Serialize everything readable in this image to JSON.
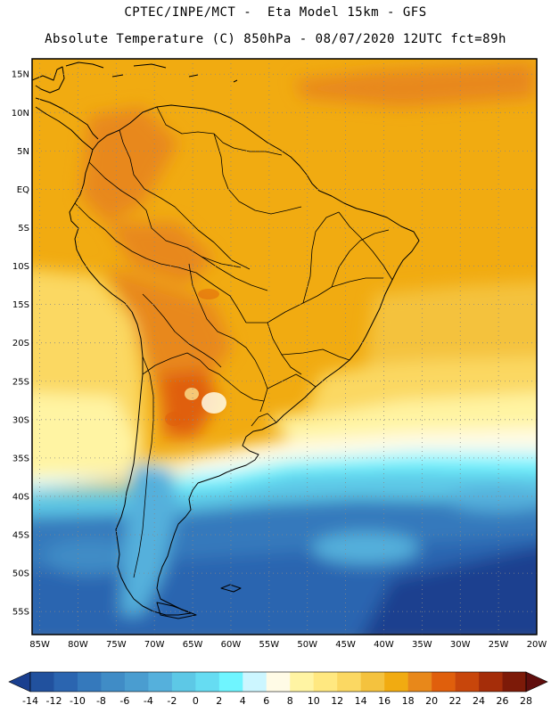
{
  "header": {
    "line1": "CPTEC/INPE/MCT -  Eta Model 15km - GFS",
    "line2": "Absolute Temperature (C) 850hPa - 08/07/2020 12UTC fct=89h"
  },
  "map": {
    "lat_labels": [
      "15N",
      "10N",
      "5N",
      "EQ",
      "5S",
      "10S",
      "15S",
      "20S",
      "25S",
      "30S",
      "35S",
      "40S",
      "45S",
      "50S",
      "55S"
    ],
    "lat_values": [
      15,
      10,
      5,
      0,
      -5,
      -10,
      -15,
      -20,
      -25,
      -30,
      -35,
      -40,
      -45,
      -50,
      -55
    ],
    "lon_labels": [
      "85W",
      "80W",
      "75W",
      "70W",
      "65W",
      "60W",
      "55W",
      "50W",
      "45W",
      "40W",
      "35W",
      "30W",
      "25W",
      "20W"
    ],
    "lon_values": [
      -85,
      -80,
      -75,
      -70,
      -65,
      -60,
      -55,
      -50,
      -45,
      -40,
      -35,
      -30,
      -25,
      -20
    ],
    "lat_range": [
      -58,
      17
    ],
    "lon_range": [
      -86,
      -20
    ],
    "grid": "dotted"
  },
  "colorbar": {
    "labels": [
      "-14",
      "-12",
      "-10",
      "-8",
      "-6",
      "-4",
      "-2",
      "0",
      "2",
      "4",
      "6",
      "8",
      "10",
      "12",
      "14",
      "16",
      "18",
      "20",
      "22",
      "24",
      "26",
      "28"
    ],
    "colors": [
      "#1a3f8f",
      "#21519e",
      "#2b65b0",
      "#3579bc",
      "#408cc6",
      "#4a9dd0",
      "#55b0dc",
      "#5dc8e6",
      "#66dcf2",
      "#6ff5ff",
      "#ccf6ff",
      "#fffbe6",
      "#fff4a3",
      "#ffe880",
      "#fbd862",
      "#f4c23e",
      "#f1ab11",
      "#e8881a",
      "#e05f0c",
      "#c8460b",
      "#a52d09",
      "#7d1a08",
      "#600e0d"
    ],
    "unit": "C"
  }
}
